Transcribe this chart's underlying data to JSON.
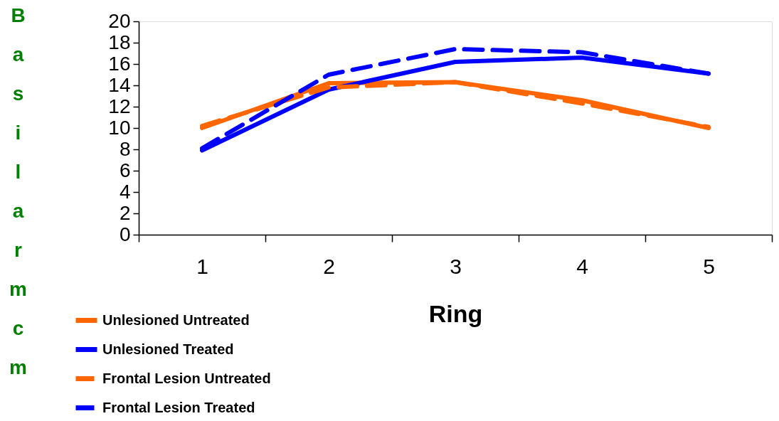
{
  "chart_data": {
    "type": "line",
    "xlabel": "Ring",
    "ylabel": "Basilar mcm",
    "categories": [
      "1",
      "2",
      "3",
      "4",
      "5"
    ],
    "series": [
      {
        "name": "Unlesioned Untreated",
        "color": "#ff6600",
        "line_style": "solid",
        "values": [
          10.0,
          14.2,
          14.3,
          12.6,
          10.0
        ]
      },
      {
        "name": "Unlesioned Treated",
        "color": "#0000ff",
        "line_style": "solid",
        "values": [
          7.9,
          13.6,
          16.2,
          16.6,
          15.1
        ]
      },
      {
        "name": "Frontal Lesion Untreated",
        "color": "#ff6600",
        "line_style": "dashed",
        "values": [
          10.2,
          13.8,
          14.3,
          12.3,
          10.1
        ]
      },
      {
        "name": "Frontal Lesion Treated",
        "color": "#0000ff",
        "line_style": "dashed",
        "values": [
          8.1,
          15.0,
          17.4,
          17.1,
          15.1
        ]
      }
    ],
    "ylim": [
      0,
      20
    ],
    "yticks": [
      0,
      2,
      4,
      6,
      8,
      10,
      12,
      14,
      16,
      18,
      20
    ],
    "grid": false,
    "legend": "bottom left",
    "marker": "none"
  }
}
